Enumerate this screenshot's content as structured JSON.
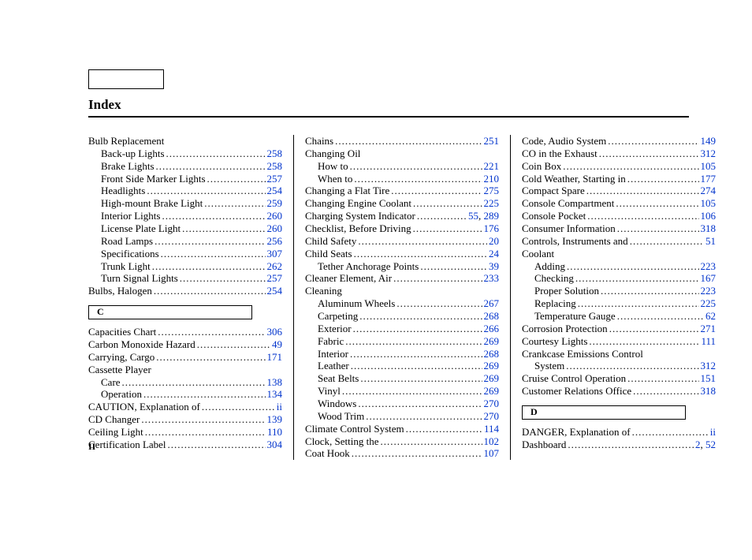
{
  "title": "Index",
  "page_number": "II",
  "link_color": "#0033cc",
  "columns": [
    [
      {
        "type": "header",
        "label": "Bulb Replacement"
      },
      {
        "type": "entry",
        "indent": 1,
        "label": "Back-up Lights",
        "pages": [
          "258"
        ]
      },
      {
        "type": "entry",
        "indent": 1,
        "label": "Brake Lights",
        "pages": [
          "258"
        ]
      },
      {
        "type": "entry",
        "indent": 1,
        "label": "Front Side Marker Lights",
        "pages": [
          "257"
        ]
      },
      {
        "type": "entry",
        "indent": 1,
        "label": "Headlights",
        "pages": [
          "254"
        ]
      },
      {
        "type": "entry",
        "indent": 1,
        "label": "High-mount Brake Light",
        "pages": [
          "259"
        ]
      },
      {
        "type": "entry",
        "indent": 1,
        "label": "Interior Lights",
        "pages": [
          "260"
        ]
      },
      {
        "type": "entry",
        "indent": 1,
        "label": "License Plate Light",
        "pages": [
          "260"
        ]
      },
      {
        "type": "entry",
        "indent": 1,
        "label": "Road Lamps",
        "pages": [
          "256"
        ]
      },
      {
        "type": "entry",
        "indent": 1,
        "label": "Specifications",
        "pages": [
          "307"
        ]
      },
      {
        "type": "entry",
        "indent": 1,
        "label": "Trunk Light",
        "pages": [
          "262"
        ]
      },
      {
        "type": "entry",
        "indent": 1,
        "label": "Turn Signal Lights",
        "pages": [
          "257"
        ]
      },
      {
        "type": "entry",
        "indent": 0,
        "label": "Bulbs, Halogen",
        "pages": [
          "254"
        ]
      },
      {
        "type": "letter",
        "label": "C"
      },
      {
        "type": "entry",
        "indent": 0,
        "label": "Capacities Chart",
        "pages": [
          "306"
        ]
      },
      {
        "type": "entry",
        "indent": 0,
        "label": "Carbon Monoxide Hazard",
        "pages": [
          "49"
        ]
      },
      {
        "type": "entry",
        "indent": 0,
        "label": "Carrying, Cargo",
        "pages": [
          "171"
        ]
      },
      {
        "type": "header",
        "label": "Cassette Player"
      },
      {
        "type": "entry",
        "indent": 1,
        "label": "Care",
        "pages": [
          "138"
        ]
      },
      {
        "type": "entry",
        "indent": 1,
        "label": "Operation",
        "pages": [
          "134"
        ]
      },
      {
        "type": "entry",
        "indent": 0,
        "label": "CAUTION, Explanation of",
        "pages": [
          "ii"
        ]
      },
      {
        "type": "entry",
        "indent": 0,
        "label": "CD Changer",
        "pages": [
          "139"
        ]
      },
      {
        "type": "entry",
        "indent": 0,
        "label": "Ceiling Light",
        "pages": [
          "110"
        ]
      },
      {
        "type": "entry",
        "indent": 0,
        "label": "Certification Label",
        "pages": [
          "304"
        ]
      }
    ],
    [
      {
        "type": "entry",
        "indent": 0,
        "label": "Chains",
        "pages": [
          "251"
        ]
      },
      {
        "type": "header",
        "label": "Changing Oil"
      },
      {
        "type": "entry",
        "indent": 1,
        "label": "How to",
        "pages": [
          "221"
        ]
      },
      {
        "type": "entry",
        "indent": 1,
        "label": "When to",
        "pages": [
          "210"
        ]
      },
      {
        "type": "entry",
        "indent": 0,
        "label": "Changing a Flat Tire",
        "pages": [
          "275"
        ]
      },
      {
        "type": "entry",
        "indent": 0,
        "label": "Changing Engine Coolant",
        "pages": [
          "225"
        ]
      },
      {
        "type": "entry",
        "indent": 0,
        "label": "Charging System Indicator",
        "pages": [
          "55",
          "289"
        ]
      },
      {
        "type": "entry",
        "indent": 0,
        "label": "Checklist, Before Driving",
        "pages": [
          "176"
        ]
      },
      {
        "type": "entry",
        "indent": 0,
        "label": "Child Safety",
        "pages": [
          "20"
        ]
      },
      {
        "type": "entry",
        "indent": 0,
        "label": "Child Seats",
        "pages": [
          "24"
        ]
      },
      {
        "type": "entry",
        "indent": 1,
        "label": "Tether Anchorage Points",
        "pages": [
          "39"
        ]
      },
      {
        "type": "entry",
        "indent": 0,
        "label": "Cleaner Element, Air",
        "pages": [
          "233"
        ]
      },
      {
        "type": "header",
        "label": "Cleaning"
      },
      {
        "type": "entry",
        "indent": 1,
        "label": "Aluminum Wheels",
        "pages": [
          "267"
        ]
      },
      {
        "type": "entry",
        "indent": 1,
        "label": "Carpeting",
        "pages": [
          "268"
        ]
      },
      {
        "type": "entry",
        "indent": 1,
        "label": "Exterior",
        "pages": [
          "266"
        ]
      },
      {
        "type": "entry",
        "indent": 1,
        "label": "Fabric",
        "pages": [
          "269"
        ]
      },
      {
        "type": "entry",
        "indent": 1,
        "label": "Interior",
        "pages": [
          "268"
        ]
      },
      {
        "type": "entry",
        "indent": 1,
        "label": "Leather",
        "pages": [
          "269"
        ]
      },
      {
        "type": "entry",
        "indent": 1,
        "label": "Seat Belts",
        "pages": [
          "269"
        ]
      },
      {
        "type": "entry",
        "indent": 1,
        "label": "Vinyl",
        "pages": [
          "269"
        ]
      },
      {
        "type": "entry",
        "indent": 1,
        "label": "Windows",
        "pages": [
          "270"
        ]
      },
      {
        "type": "entry",
        "indent": 1,
        "label": "Wood Trim",
        "pages": [
          "270"
        ]
      },
      {
        "type": "entry",
        "indent": 0,
        "label": "Climate Control System",
        "pages": [
          "114"
        ]
      },
      {
        "type": "entry",
        "indent": 0,
        "label": "Clock, Setting the",
        "pages": [
          "102"
        ]
      },
      {
        "type": "entry",
        "indent": 0,
        "label": "Coat Hook",
        "pages": [
          "107"
        ]
      }
    ],
    [
      {
        "type": "entry",
        "indent": 0,
        "label": "Code, Audio System",
        "pages": [
          "149"
        ]
      },
      {
        "type": "entry",
        "indent": 0,
        "label": "CO in the Exhaust",
        "pages": [
          "312"
        ]
      },
      {
        "type": "entry",
        "indent": 0,
        "label": "Coin Box",
        "pages": [
          "105"
        ]
      },
      {
        "type": "entry",
        "indent": 0,
        "label": "Cold Weather, Starting in",
        "pages": [
          "177"
        ]
      },
      {
        "type": "entry",
        "indent": 0,
        "label": "Compact Spare",
        "pages": [
          "274"
        ]
      },
      {
        "type": "entry",
        "indent": 0,
        "label": "Console Compartment",
        "pages": [
          "105"
        ]
      },
      {
        "type": "entry",
        "indent": 0,
        "label": "Console Pocket",
        "pages": [
          "106"
        ]
      },
      {
        "type": "entry",
        "indent": 0,
        "label": "Consumer Information",
        "pages": [
          "318"
        ]
      },
      {
        "type": "entry",
        "indent": 0,
        "label": "Controls, Instruments and",
        "pages": [
          "51"
        ]
      },
      {
        "type": "header",
        "label": "Coolant"
      },
      {
        "type": "entry",
        "indent": 1,
        "label": "Adding",
        "pages": [
          "223"
        ]
      },
      {
        "type": "entry",
        "indent": 1,
        "label": "Checking",
        "pages": [
          "167"
        ]
      },
      {
        "type": "entry",
        "indent": 1,
        "label": "Proper Solution",
        "pages": [
          "223"
        ]
      },
      {
        "type": "entry",
        "indent": 1,
        "label": "Replacing",
        "pages": [
          "225"
        ]
      },
      {
        "type": "entry",
        "indent": 1,
        "label": "Temperature Gauge",
        "pages": [
          "62"
        ]
      },
      {
        "type": "entry",
        "indent": 0,
        "label": "Corrosion Protection",
        "pages": [
          "271"
        ]
      },
      {
        "type": "entry",
        "indent": 0,
        "label": "Courtesy Lights",
        "pages": [
          "111"
        ]
      },
      {
        "type": "header",
        "label": "Crankcase Emissions Control"
      },
      {
        "type": "entry",
        "indent": 1,
        "label": "System",
        "pages": [
          "312"
        ]
      },
      {
        "type": "entry",
        "indent": 0,
        "label": "Cruise Control Operation",
        "pages": [
          "151"
        ]
      },
      {
        "type": "entry",
        "indent": 0,
        "label": "Customer Relations Office",
        "pages": [
          "318"
        ]
      },
      {
        "type": "letter",
        "label": "D"
      },
      {
        "type": "entry",
        "indent": 0,
        "label": "DANGER, Explanation of",
        "pages": [
          "ii"
        ]
      },
      {
        "type": "entry",
        "indent": 0,
        "label": "Dashboard",
        "pages": [
          "2",
          "52"
        ]
      }
    ]
  ]
}
